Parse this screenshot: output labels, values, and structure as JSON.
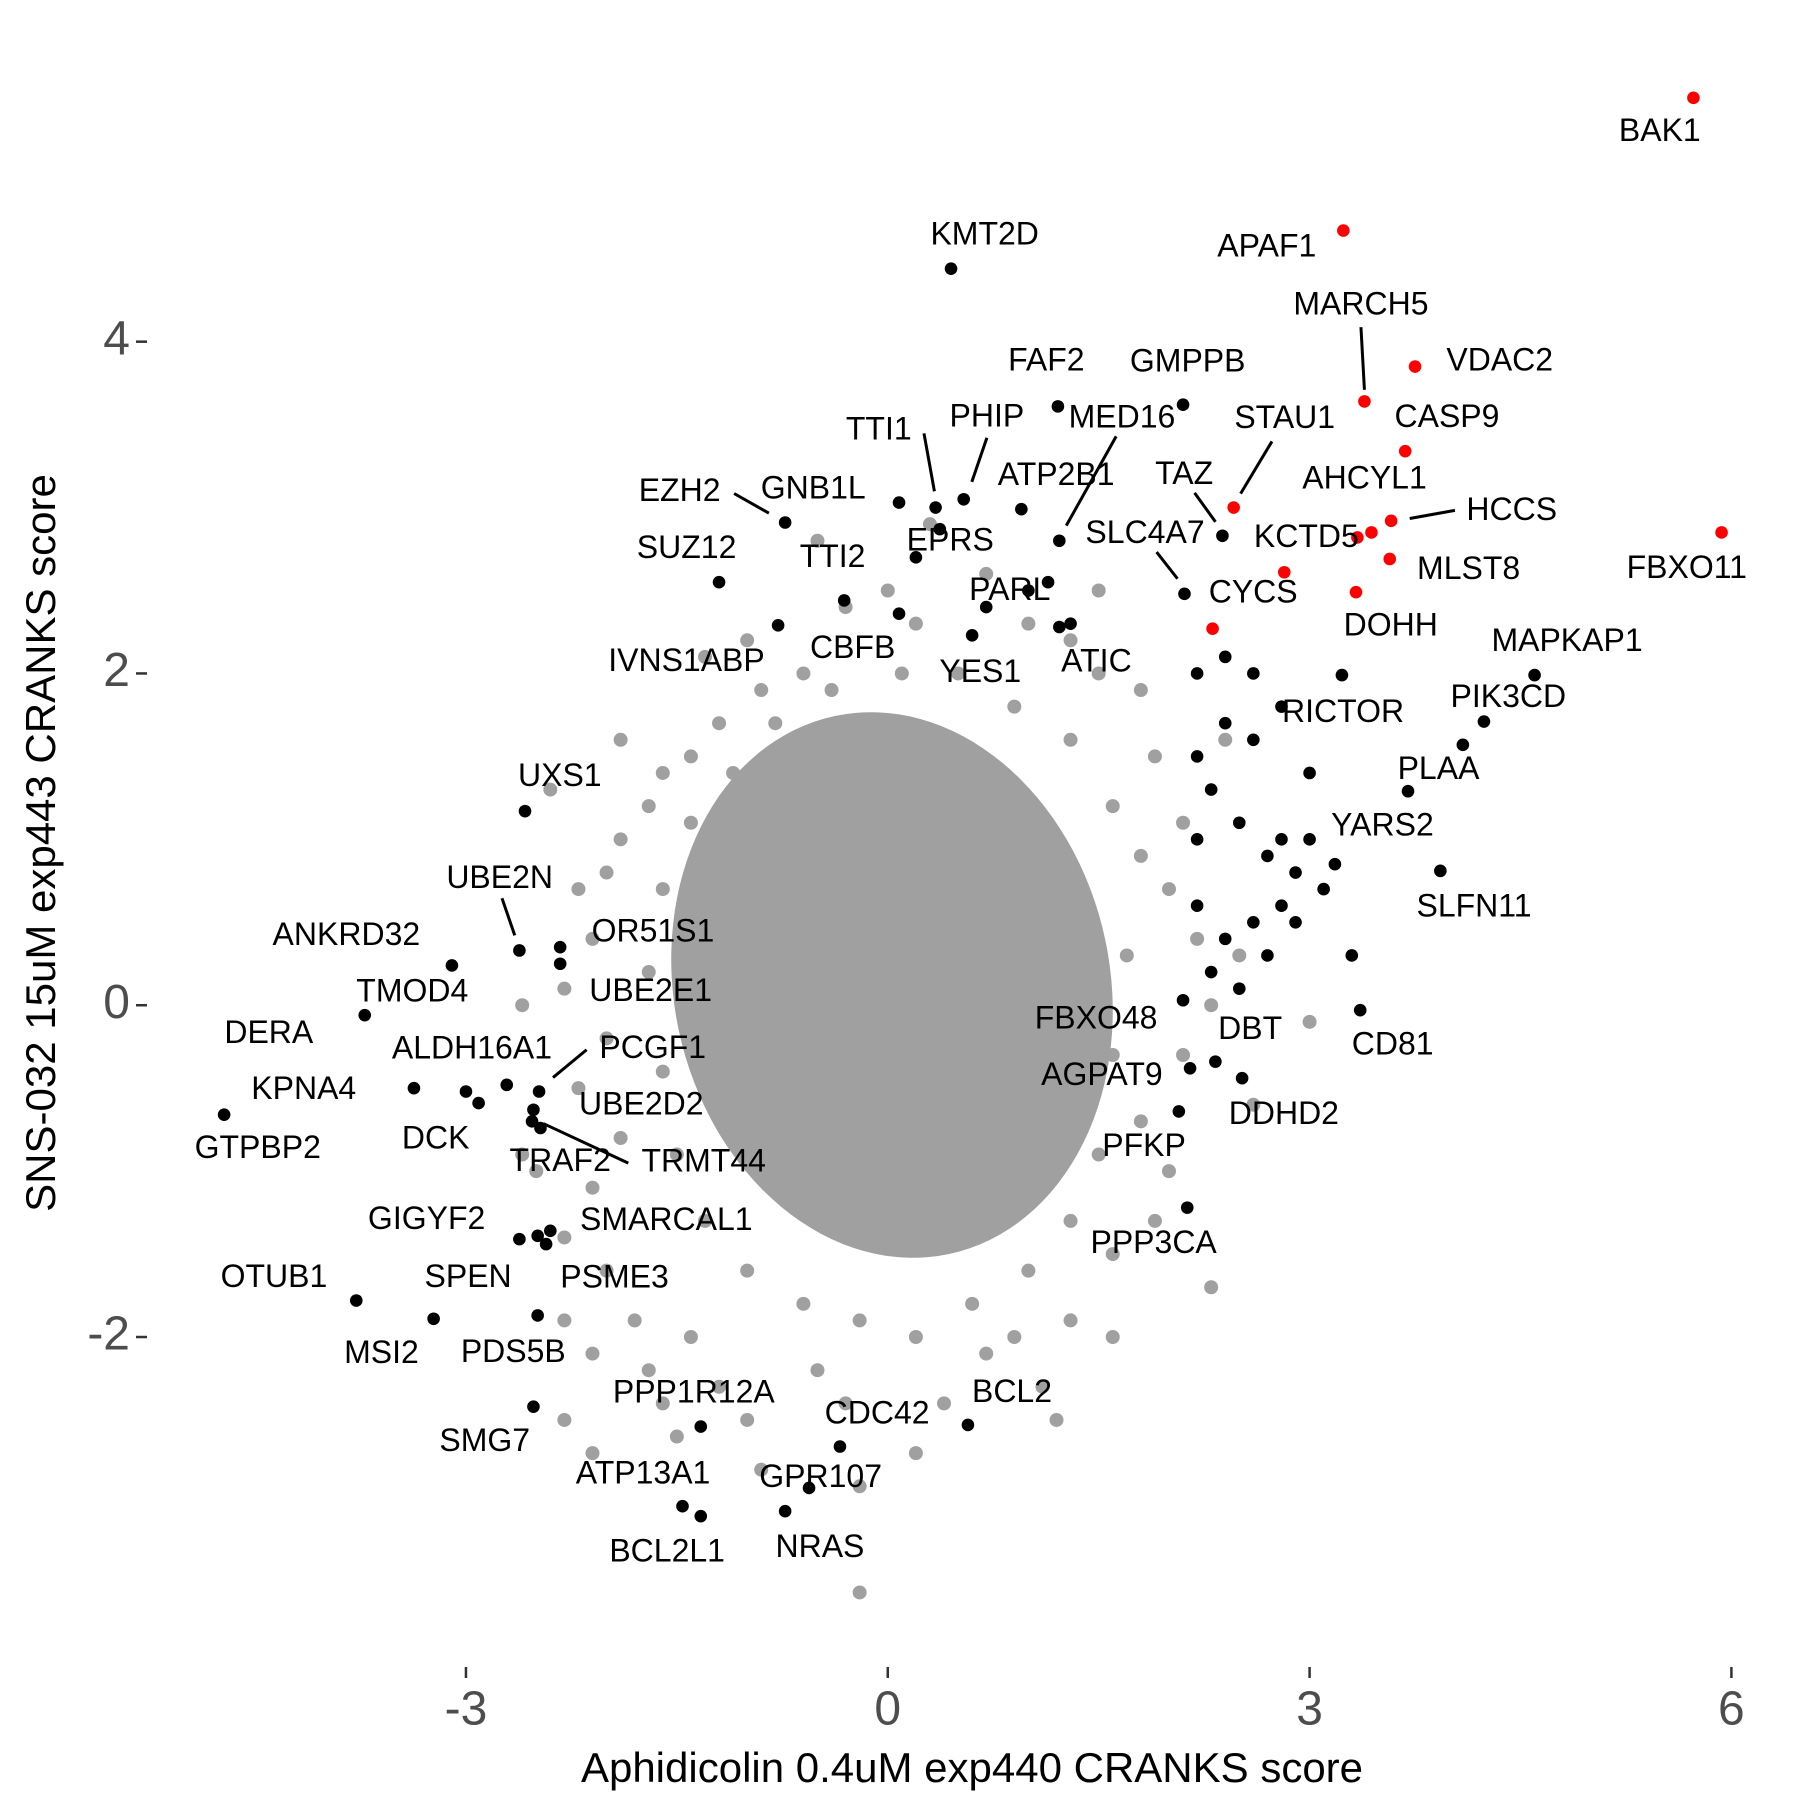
{
  "chart_data": {
    "type": "scatter",
    "x_label": "Aphidicolin 0.4uM exp440 CRANKS score",
    "y_label": "SNS-032 15uM exp443 CRANKS score",
    "xlim": [
      -5.24,
      6.31
    ],
    "ylim": [
      -3.73,
      5.71
    ],
    "xticks": [
      -3,
      0,
      3,
      6
    ],
    "yticks": [
      -2,
      0,
      2,
      4
    ],
    "grid": false,
    "series": [
      {
        "color": "#a0a0a0",
        "x": [
          -1.6,
          -1.7,
          -1.9,
          -2.0,
          -2.2,
          -2.1,
          -2.3,
          -2.0,
          -2.2,
          -1.9,
          -2.1,
          -2.3,
          -2.0,
          -1.8,
          -2.1,
          -2.3,
          -2.1,
          -1.6,
          -1.7,
          -1.4,
          -1.2,
          -1.0,
          -0.5,
          -0.3,
          -0.2,
          -0.2,
          0.2,
          0.4,
          0.7,
          0.9,
          1.2,
          1.6,
          1.6,
          1.9,
          2.0,
          1.8,
          2.1,
          2.3,
          2.2,
          2.0,
          2.1,
          1.9,
          1.8,
          1.5,
          1.3,
          1.0,
          0.7,
          0.3,
          0.0,
          -0.3,
          -0.6,
          -0.9,
          -1.2,
          -1.4,
          -1.0,
          -0.6,
          0.5,
          0.9,
          1.3,
          1.6,
          1.8,
          1.7,
          1.6,
          1.5,
          1.3,
          1.0,
          0.6,
          0.2,
          -0.2,
          -0.6,
          -1.0,
          -1.3,
          -1.5,
          -1.6,
          -1.7,
          -1.6,
          -1.4,
          -1.1,
          -0.8,
          -0.4,
          0.1,
          2.5,
          2.6,
          2.3,
          1.3,
          -2.5,
          -2.6,
          -1.9,
          -2.3,
          3.0,
          -1.3,
          0.2,
          -0.9,
          -1.5,
          1.1,
          -2.6,
          2.4,
          1.5,
          -0.5,
          -2.4
        ],
        "values": [
          1.4,
          1.2,
          1.0,
          0.8,
          0.7,
          0.4,
          0.1,
          -0.2,
          -0.5,
          -0.8,
          -1.1,
          -1.4,
          -1.6,
          -1.9,
          -2.1,
          -2.5,
          -2.7,
          -2.4,
          -2.2,
          -2.0,
          -2.3,
          -2.5,
          -2.2,
          -2.4,
          -2.9,
          -3.54,
          -2.7,
          -2.4,
          -2.1,
          -2.0,
          -2.5,
          -2.0,
          -1.5,
          -1.3,
          -1.0,
          -0.7,
          -0.3,
          0.0,
          0.4,
          0.7,
          1.1,
          1.5,
          1.9,
          2.0,
          2.2,
          2.3,
          2.6,
          2.9,
          2.5,
          2.4,
          2.0,
          1.9,
          1.7,
          1.5,
          2.2,
          1.6,
          2.0,
          1.8,
          1.6,
          1.2,
          0.9,
          0.3,
          -0.3,
          -0.9,
          -1.3,
          -1.6,
          -1.8,
          -2.0,
          -1.9,
          -1.8,
          -1.6,
          -1.3,
          -0.9,
          -0.4,
          0.2,
          0.7,
          1.1,
          1.4,
          1.7,
          1.9,
          2.0,
          0.3,
          -0.6,
          -1.7,
          -1.9,
          -1.0,
          0.0,
          1.6,
          -1.9,
          -0.1,
          2.1,
          2.3,
          -2.8,
          -2.6,
          -2.3,
          -0.9,
          1.6,
          2.5,
          2.8,
          1.3
        ]
      },
      {
        "color": "#000000",
        "labels": [
          "KMT2D",
          "FAF2",
          "GMPPB",
          "MED16",
          "PHIP",
          "TTI1",
          "ATP2B1",
          "TAZ",
          "EZH2",
          "GNB1L",
          "SUZ12",
          "TTI2",
          "EPRS",
          "SLC4A7",
          "PARL",
          "IVNS1ABP",
          "CBFB",
          "YES1",
          "ATIC",
          "RICTOR",
          "MAPKAP1",
          "PIK3CD",
          "PLAA",
          "YARS2",
          "SLFN11",
          "CD81",
          "DBT",
          "DDHD2",
          "FBXO48",
          "AGPAT9",
          "PFKP",
          "PPP3CA",
          "BCL2",
          "CDC42",
          "GPR107",
          "NRAS",
          "ATP13A1",
          "BCL2L1",
          "PPP1R12A",
          "SMG7",
          "PDS5B",
          "MSI2",
          "OTUB1",
          "GIGYF2",
          "SPEN",
          "PSME3",
          "SMARCAL1",
          "GTPBP2",
          "KPNA4",
          "DERA",
          "TMOD4",
          "DCK",
          "ALDH16A1",
          "TRAF2",
          "TRMT44",
          "UBE2D2",
          "PCGF1",
          "ANKRD32",
          "UBE2N",
          "OR51S1",
          "UBE2E1",
          "UXS1",
          null,
          null,
          null,
          null,
          null,
          null,
          null,
          null,
          null,
          null,
          null,
          null,
          null,
          null,
          null,
          null,
          null,
          null,
          null,
          null,
          null,
          null,
          null,
          null,
          null,
          null,
          null,
          null,
          null,
          null
        ],
        "x": [
          0.45,
          1.21,
          2.1,
          1.22,
          0.54,
          0.34,
          0.95,
          2.38,
          -0.73,
          0.08,
          -1.2,
          -0.31,
          0.37,
          2.11,
          1.14,
          -0.78,
          0.08,
          0.6,
          1.22,
          3.23,
          4.6,
          4.24,
          4.09,
          3.18,
          3.93,
          3.36,
          2.33,
          2.52,
          2.1,
          2.15,
          2.07,
          2.13,
          0.57,
          -0.34,
          -0.56,
          -0.73,
          -1.46,
          -1.33,
          -1.33,
          -2.52,
          -2.49,
          -3.23,
          -3.78,
          -2.62,
          -2.49,
          -2.43,
          -2.4,
          -4.72,
          -3.37,
          -3.0,
          -3.72,
          -2.91,
          -2.71,
          -2.47,
          -2.53,
          -2.52,
          -2.48,
          -3.1,
          -2.62,
          -2.33,
          -2.33,
          -2.58,
          2.2,
          2.4,
          2.6,
          2.3,
          2.5,
          2.7,
          2.9,
          3.1,
          2.2,
          2.4,
          2.6,
          2.8,
          2.3,
          2.5,
          2.7,
          2.2,
          2.8,
          3.0,
          2.6,
          2.8,
          2.2,
          2.4,
          3.7,
          3.3,
          3.0,
          2.9,
          1.0,
          1.3,
          0.7,
          0.2
        ],
        "values": [
          4.44,
          3.61,
          3.62,
          2.8,
          3.05,
          3.0,
          2.99,
          2.83,
          2.91,
          3.03,
          2.55,
          2.44,
          2.87,
          2.48,
          2.55,
          2.29,
          2.36,
          2.23,
          2.28,
          1.99,
          1.99,
          1.71,
          1.57,
          0.85,
          0.81,
          -0.03,
          -0.34,
          -0.44,
          0.03,
          -0.38,
          -0.64,
          -1.22,
          -2.53,
          -2.66,
          -2.91,
          -3.05,
          -3.02,
          -3.08,
          -2.54,
          -2.42,
          -1.87,
          -1.89,
          -1.78,
          -1.41,
          -1.39,
          -1.44,
          -1.36,
          -0.66,
          -0.5,
          -0.52,
          -0.06,
          -0.59,
          -0.48,
          -0.74,
          -0.7,
          -0.63,
          -0.52,
          0.24,
          0.33,
          0.35,
          0.25,
          1.17,
          1.5,
          1.7,
          1.6,
          1.3,
          1.1,
          0.9,
          0.8,
          0.7,
          0.6,
          0.4,
          0.5,
          0.6,
          0.2,
          0.1,
          0.3,
          1.0,
          1.0,
          1.0,
          2.0,
          1.8,
          2.0,
          2.1,
          1.29,
          0.3,
          1.4,
          0.5,
          2.5,
          2.3,
          2.4,
          2.7
        ]
      },
      {
        "color": "#ff0000",
        "labels": [
          "BAK1",
          "APAF1",
          "VDAC2",
          "MARCH5",
          "CASP9",
          "STAU1",
          "HCCS",
          "AHCYL1",
          null,
          "KCTD5",
          "MLST8",
          "DOHH",
          "CYCS",
          "FBXO11"
        ],
        "x": [
          5.73,
          3.24,
          3.75,
          3.39,
          3.68,
          2.46,
          3.58,
          3.44,
          3.34,
          2.82,
          3.57,
          3.33,
          2.31,
          5.93
        ],
        "values": [
          5.47,
          4.67,
          3.85,
          3.64,
          3.34,
          3.0,
          2.92,
          2.85,
          2.82,
          2.61,
          2.69,
          2.49,
          2.27,
          2.85
        ]
      }
    ]
  }
}
